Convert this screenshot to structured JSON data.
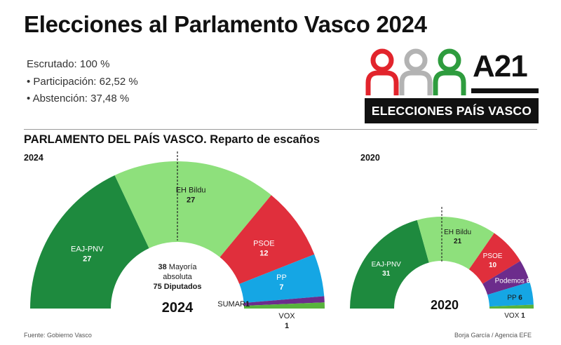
{
  "title": "Elecciones al Parlamento Vasco 2024",
  "stats": {
    "escrutado": "Escrutado: 100 %",
    "participacion": "• Participación: 62,52 %",
    "abstencion": "• Abstención: 37,48 %"
  },
  "logo": {
    "a21": "A21",
    "band": "ELECCIONES PAÍS VASCO",
    "figure_colors": [
      "#e2242c",
      "#b3b3b3",
      "#2e9c3e"
    ]
  },
  "section_title": "PARLAMENTO DEL PAÍS VASCO. Reparto de escaños",
  "footer": {
    "source": "Fuente: Gobierno Vasco",
    "credit": "Borja García / Agencia EFE"
  },
  "chart_data": [
    {
      "type": "pie",
      "style": "semicircle-parliament",
      "year_label": "2024",
      "center_label": "2024",
      "total_seats": 75,
      "majority": 38,
      "center_note": [
        "38 Mayoría",
        "absoluta",
        "75 Diputados"
      ],
      "categories": [
        "EAJ-PNV",
        "EH Bildu",
        "PSOE",
        "PP",
        "SUMAR",
        "VOX"
      ],
      "values": [
        27,
        27,
        12,
        7,
        1,
        1
      ],
      "colors": [
        "#1e8a3e",
        "#8ee07c",
        "#e02f3c",
        "#15a6e4",
        "#6c2c8c",
        "#58b33d"
      ]
    },
    {
      "type": "pie",
      "style": "semicircle-parliament",
      "year_label": "2020",
      "center_label": "2020",
      "total_seats": 75,
      "majority_line": true,
      "categories": [
        "EAJ-PNV",
        "EH Bildu",
        "PSOE",
        "Podemos",
        "PP",
        "VOX"
      ],
      "values": [
        31,
        21,
        10,
        6,
        6,
        1
      ],
      "colors": [
        "#1e8a3e",
        "#8ee07c",
        "#e02f3c",
        "#6c2c8c",
        "#15a6e4",
        "#58b33d"
      ]
    }
  ]
}
